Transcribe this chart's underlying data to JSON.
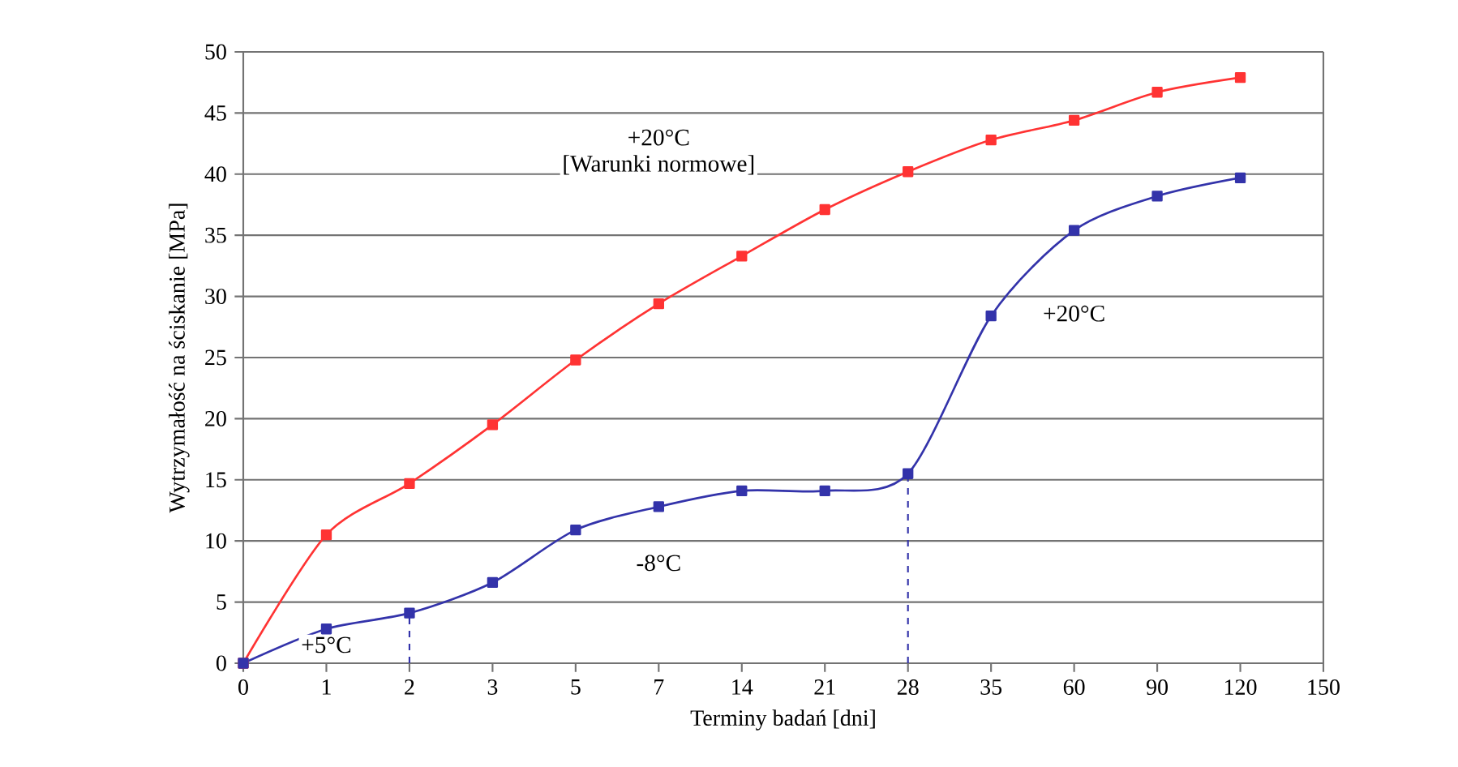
{
  "chart_data": {
    "type": "line",
    "xlabel": "Terminy badań [dni]",
    "ylabel": "Wytrzymałość na ściskanie [MPa]",
    "categories": [
      "0",
      "1",
      "2",
      "3",
      "5",
      "7",
      "14",
      "21",
      "28",
      "35",
      "60",
      "90",
      "120",
      "150"
    ],
    "series": [
      {
        "color": "#ff3333",
        "values": [
          0,
          10.5,
          14.7,
          19.5,
          24.8,
          29.4,
          33.3,
          37.1,
          40.2,
          42.8,
          44.4,
          46.7,
          47.9,
          null
        ]
      },
      {
        "color": "#3333aa",
        "values": [
          0,
          2.8,
          4.1,
          6.6,
          10.9,
          12.8,
          14.1,
          14.1,
          15.5,
          28.4,
          35.4,
          38.2,
          39.7,
          null
        ]
      }
    ],
    "ylim": [
      0,
      50
    ],
    "yticks": [
      0,
      5,
      10,
      15,
      20,
      25,
      30,
      35,
      40,
      45,
      50
    ],
    "grid": "y",
    "marker": "square",
    "ref_lines": [
      {
        "axis": "x",
        "value": "2",
        "color": "#3333aa",
        "line_style": "dashed"
      },
      {
        "axis": "x",
        "value": "28",
        "color": "#3333aa",
        "line_style": "dashed"
      }
    ],
    "annotations": [
      {
        "text": "+20°C",
        "x": "7",
        "y": 43
      },
      "[Warunki normowe]",
      {
        "text": "+20°C",
        "x": "60",
        "y": 28.6
      },
      {
        "text": "-8°C",
        "x": "7",
        "y": 8.2
      },
      {
        "text": "+5°C",
        "x": "1",
        "y": 1.5
      }
    ]
  }
}
